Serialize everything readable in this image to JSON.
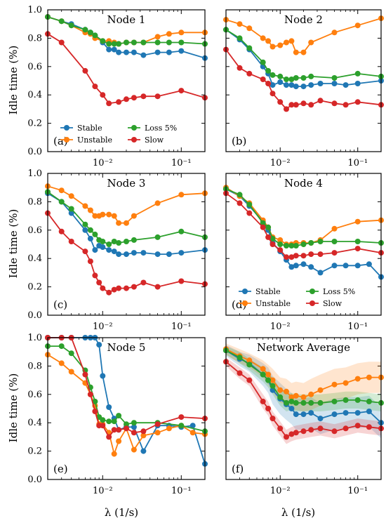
{
  "colors": {
    "Stable": "#1f77b4",
    "Unstable": "#ff7f0e",
    "Loss 5%": "#2ca02c",
    "Slow": "#d62728"
  },
  "y_axis_label": "Idle time (%)",
  "x_axis_label": "λ (1/s)",
  "chart_data": [
    {
      "type": "line",
      "title": "Node 1",
      "panel_label": "(a)",
      "xscale": "log",
      "xlim": [
        0.002,
        0.2
      ],
      "ylim": [
        0,
        1.0
      ],
      "yticks": [
        "0.0",
        "0.2",
        "0.4",
        "0.6",
        "0.8",
        "1.0"
      ],
      "xticks": [
        "10⁻²",
        "10⁻¹"
      ],
      "legend": {
        "placement": "bottom",
        "entries": [
          "Stable",
          "Unstable",
          "Loss 5%",
          "Slow"
        ]
      },
      "x": [
        0.002,
        0.003,
        0.004,
        0.006,
        0.007,
        0.008,
        0.01,
        0.012,
        0.014,
        0.016,
        0.02,
        0.025,
        0.033,
        0.05,
        0.07,
        0.1,
        0.2
      ],
      "series": [
        {
          "name": "Stable",
          "values": [
            0.95,
            0.92,
            0.9,
            0.86,
            0.84,
            0.82,
            0.77,
            0.72,
            0.72,
            0.7,
            0.7,
            0.7,
            0.68,
            0.7,
            0.7,
            0.71,
            0.66
          ]
        },
        {
          "name": "Unstable",
          "values": [
            0.95,
            0.92,
            0.89,
            0.84,
            0.83,
            0.8,
            0.78,
            0.78,
            0.77,
            0.76,
            0.77,
            0.77,
            0.77,
            0.81,
            0.83,
            0.84,
            0.84
          ]
        },
        {
          "name": "Loss 5%",
          "values": [
            0.95,
            0.92,
            0.89,
            0.86,
            0.84,
            0.82,
            0.78,
            0.76,
            0.76,
            0.76,
            0.77,
            0.77,
            0.77,
            0.77,
            0.77,
            0.77,
            0.76
          ]
        },
        {
          "name": "Slow",
          "values": [
            0.83,
            0.77,
            null,
            0.57,
            null,
            0.46,
            0.4,
            0.34,
            null,
            0.35,
            0.37,
            0.38,
            0.39,
            0.39,
            null,
            0.43,
            0.38
          ]
        }
      ]
    },
    {
      "type": "line",
      "title": "Node 2",
      "panel_label": "(b)",
      "xscale": "log",
      "xlim": [
        0.002,
        0.2
      ],
      "ylim": [
        0,
        1.0
      ],
      "yticks": [
        "0.0",
        "0.2",
        "0.4",
        "0.6",
        "0.8",
        "1.0"
      ],
      "xticks": [
        "10⁻²",
        "10⁻¹"
      ],
      "x": [
        0.002,
        0.003,
        0.004,
        0.006,
        0.007,
        0.008,
        0.01,
        0.012,
        0.014,
        0.016,
        0.02,
        0.025,
        0.033,
        0.05,
        0.07,
        0.1,
        0.2
      ],
      "series": [
        {
          "name": "Stable",
          "values": [
            0.86,
            0.79,
            0.72,
            0.6,
            0.55,
            0.47,
            0.49,
            0.47,
            0.47,
            0.46,
            0.46,
            0.47,
            0.48,
            0.48,
            0.47,
            0.48,
            0.5
          ]
        },
        {
          "name": "Unstable",
          "values": [
            0.93,
            0.9,
            0.87,
            0.8,
            0.78,
            0.74,
            0.75,
            0.77,
            0.78,
            0.7,
            0.7,
            0.77,
            null,
            0.84,
            null,
            0.89,
            0.94
          ]
        },
        {
          "name": "Loss 5%",
          "values": [
            0.86,
            0.8,
            0.73,
            0.63,
            0.57,
            0.54,
            0.53,
            0.51,
            0.51,
            0.52,
            0.52,
            0.53,
            null,
            0.52,
            null,
            0.55,
            0.53
          ]
        },
        {
          "name": "Slow",
          "values": [
            0.72,
            0.59,
            0.55,
            0.51,
            0.48,
            0.41,
            0.35,
            0.3,
            0.33,
            0.33,
            0.34,
            0.33,
            0.36,
            0.34,
            0.33,
            0.35,
            0.33
          ]
        }
      ]
    },
    {
      "type": "line",
      "title": "Node 3",
      "panel_label": "(c)",
      "xscale": "log",
      "xlim": [
        0.002,
        0.2
      ],
      "ylim": [
        0,
        1.0
      ],
      "yticks": [
        "0.0",
        "0.2",
        "0.4",
        "0.6",
        "0.8",
        "1.0"
      ],
      "xticks": [
        "10⁻²",
        "10⁻¹"
      ],
      "x": [
        0.002,
        0.003,
        0.004,
        0.006,
        0.007,
        0.008,
        0.009,
        0.01,
        0.012,
        0.014,
        0.016,
        0.02,
        0.025,
        0.033,
        0.05,
        0.07,
        0.1,
        0.2
      ],
      "series": [
        {
          "name": "Stable",
          "values": [
            0.86,
            0.8,
            0.72,
            0.6,
            0.54,
            0.46,
            0.49,
            0.48,
            0.46,
            0.45,
            0.43,
            0.43,
            0.44,
            0.44,
            0.43,
            0.43,
            0.44,
            0.46
          ]
        },
        {
          "name": "Unstable",
          "values": [
            0.91,
            0.88,
            0.84,
            0.77,
            0.74,
            0.7,
            0.7,
            0.71,
            0.71,
            0.7,
            0.65,
            0.65,
            0.7,
            null,
            0.79,
            null,
            0.85,
            0.86
          ]
        },
        {
          "name": "Loss 5%",
          "values": [
            0.87,
            0.8,
            0.75,
            0.64,
            0.6,
            0.57,
            0.53,
            0.52,
            0.5,
            0.52,
            0.51,
            0.52,
            0.53,
            null,
            0.55,
            null,
            0.59,
            0.55
          ]
        },
        {
          "name": "Slow",
          "values": [
            0.72,
            0.59,
            0.52,
            0.45,
            0.38,
            0.28,
            0.23,
            0.19,
            0.16,
            0.18,
            0.19,
            0.19,
            0.2,
            0.23,
            0.2,
            null,
            0.24,
            0.22
          ]
        }
      ]
    },
    {
      "type": "line",
      "title": "Node 4",
      "panel_label": "(d)",
      "xscale": "log",
      "xlim": [
        0.002,
        0.2
      ],
      "ylim": [
        0,
        1.0
      ],
      "yticks": [
        "0.0",
        "0.2",
        "0.4",
        "0.6",
        "0.8",
        "1.0"
      ],
      "xticks": [
        "10⁻²",
        "10⁻¹"
      ],
      "legend": {
        "placement": "bottom",
        "entries": [
          "Stable",
          "Unstable",
          "Loss 5%",
          "Slow"
        ]
      },
      "x": [
        0.002,
        0.003,
        0.004,
        0.006,
        0.007,
        0.008,
        0.01,
        0.012,
        0.014,
        0.016,
        0.02,
        0.025,
        0.033,
        0.05,
        0.07,
        0.1,
        0.14,
        0.2
      ],
      "series": [
        {
          "name": "Stable",
          "values": [
            0.89,
            0.84,
            0.77,
            0.66,
            0.6,
            0.51,
            0.45,
            0.39,
            0.34,
            0.35,
            0.36,
            0.34,
            0.3,
            0.35,
            0.35,
            0.35,
            0.36,
            0.27
          ]
        },
        {
          "name": "Unstable",
          "values": [
            0.9,
            0.84,
            0.79,
            0.67,
            0.62,
            0.55,
            0.53,
            0.5,
            0.5,
            0.51,
            0.51,
            0.51,
            0.53,
            0.61,
            null,
            0.66,
            null,
            0.67
          ]
        },
        {
          "name": "Loss 5%",
          "values": [
            0.89,
            0.85,
            0.78,
            0.65,
            0.62,
            0.54,
            0.5,
            0.49,
            0.49,
            0.49,
            0.5,
            0.51,
            0.52,
            0.52,
            null,
            0.52,
            null,
            0.51
          ]
        },
        {
          "name": "Slow",
          "values": [
            0.86,
            0.79,
            0.72,
            0.62,
            0.55,
            0.5,
            0.46,
            0.41,
            0.41,
            0.42,
            0.42,
            0.43,
            0.43,
            0.44,
            null,
            0.47,
            null,
            0.44
          ]
        }
      ]
    },
    {
      "type": "line",
      "title": "Node 5",
      "panel_label": "(e)",
      "xscale": "log",
      "xlim": [
        0.002,
        0.2
      ],
      "ylim": [
        0,
        1.0
      ],
      "yticks": [
        "0.0",
        "0.2",
        "0.4",
        "0.6",
        "0.8",
        "1.0"
      ],
      "xticks": [
        "10⁻²",
        "10⁻¹"
      ],
      "x": [
        0.002,
        0.003,
        0.004,
        0.006,
        0.007,
        0.008,
        0.009,
        0.01,
        0.012,
        0.014,
        0.016,
        0.02,
        0.025,
        0.033,
        0.05,
        0.07,
        0.1,
        0.14,
        0.2
      ],
      "series": [
        {
          "name": "Stable",
          "values": [
            1.0,
            1.0,
            1.0,
            1.0,
            1.0,
            1.0,
            0.95,
            0.73,
            0.51,
            0.43,
            0.35,
            0.37,
            0.37,
            0.2,
            0.38,
            0.38,
            0.37,
            0.38,
            0.11
          ]
        },
        {
          "name": "Unstable",
          "values": [
            0.88,
            0.82,
            0.76,
            0.68,
            0.6,
            0.52,
            0.39,
            0.39,
            0.33,
            0.18,
            0.27,
            0.36,
            0.21,
            0.31,
            0.33,
            0.36,
            0.38,
            0.33,
            0.32
          ]
        },
        {
          "name": "Loss 5%",
          "values": [
            0.94,
            0.94,
            0.89,
            0.77,
            0.65,
            0.55,
            0.44,
            0.42,
            0.41,
            0.41,
            0.45,
            0.39,
            0.4,
            null,
            0.4,
            null,
            0.38,
            null,
            0.34
          ]
        },
        {
          "name": "Slow",
          "values": [
            1.0,
            1.0,
            1.0,
            0.74,
            0.6,
            0.48,
            0.38,
            0.38,
            0.3,
            0.35,
            0.35,
            0.36,
            0.33,
            0.34,
            0.39,
            null,
            0.44,
            null,
            0.43
          ]
        }
      ]
    },
    {
      "type": "line",
      "title": "Network Average",
      "panel_label": "(f)",
      "xscale": "log",
      "xlim": [
        0.002,
        0.2
      ],
      "ylim": [
        0,
        1.0
      ],
      "yticks": [
        "0.0",
        "0.2",
        "0.4",
        "0.6",
        "0.8",
        "1.0"
      ],
      "xticks": [
        "10⁻²",
        "10⁻¹"
      ],
      "shaded_band": true,
      "x": [
        0.002,
        0.003,
        0.004,
        0.006,
        0.007,
        0.008,
        0.01,
        0.012,
        0.014,
        0.016,
        0.02,
        0.025,
        0.033,
        0.05,
        0.07,
        0.1,
        0.14,
        0.2
      ],
      "series": [
        {
          "name": "Stable",
          "values": [
            0.91,
            0.85,
            0.82,
            0.74,
            0.7,
            0.63,
            0.57,
            0.53,
            0.5,
            0.46,
            0.46,
            0.47,
            0.43,
            0.46,
            0.47,
            0.47,
            0.48,
            0.4
          ],
          "band": [
            0.04,
            0.05,
            0.06,
            0.08,
            0.09,
            0.1,
            0.11,
            0.11,
            0.11,
            0.11,
            0.11,
            0.11,
            0.11,
            0.11,
            0.11,
            0.11,
            0.11,
            0.11
          ]
        },
        {
          "name": "Unstable",
          "values": [
            0.92,
            0.87,
            0.84,
            0.78,
            0.74,
            0.7,
            0.63,
            0.62,
            0.58,
            0.59,
            0.58,
            0.6,
            0.63,
            0.67,
            0.68,
            0.71,
            0.72,
            0.72
          ],
          "band": [
            0.04,
            0.05,
            0.05,
            0.06,
            0.07,
            0.08,
            0.09,
            0.09,
            0.1,
            0.1,
            0.1,
            0.11,
            0.11,
            0.11,
            0.11,
            0.11,
            0.11,
            0.11
          ]
        },
        {
          "name": "Loss 5%",
          "values": [
            0.91,
            0.86,
            0.81,
            0.74,
            0.7,
            0.66,
            0.58,
            0.54,
            0.55,
            0.54,
            0.54,
            0.54,
            0.54,
            0.55,
            0.56,
            0.56,
            0.55,
            0.54
          ],
          "band": [
            0.03,
            0.04,
            0.04,
            0.05,
            0.05,
            0.06,
            0.06,
            0.06,
            0.06,
            0.06,
            0.06,
            0.06,
            0.06,
            0.06,
            0.06,
            0.06,
            0.06,
            0.06
          ]
        },
        {
          "name": "Slow",
          "values": [
            0.83,
            0.75,
            0.7,
            0.55,
            0.5,
            0.43,
            0.36,
            0.3,
            0.32,
            0.33,
            0.34,
            0.35,
            0.36,
            0.34,
            0.36,
            0.38,
            0.37,
            0.36
          ],
          "band": [
            0.03,
            0.04,
            0.04,
            0.05,
            0.05,
            0.05,
            0.05,
            0.05,
            0.05,
            0.05,
            0.05,
            0.05,
            0.05,
            0.05,
            0.05,
            0.05,
            0.05,
            0.05
          ]
        }
      ]
    }
  ]
}
